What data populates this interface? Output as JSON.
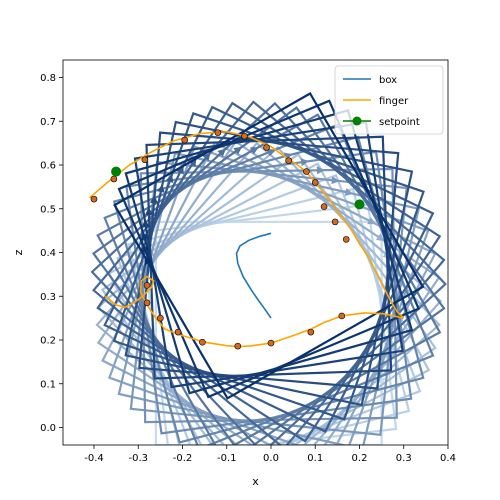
{
  "chart_data": {
    "type": "line",
    "xlabel": "x",
    "ylabel": "z",
    "xlim": [
      -0.47,
      0.4
    ],
    "ylim": [
      -0.04,
      0.84
    ],
    "xticks": [
      "-0.4",
      "-0.3",
      "-0.2",
      "-0.1",
      "0.0",
      "0.1",
      "0.2",
      "0.3",
      "0.4"
    ],
    "xtick_values": [
      -0.4,
      -0.3,
      -0.2,
      -0.1,
      0.0,
      0.1,
      0.2,
      0.3,
      0.4
    ],
    "yticks": [
      "0.0",
      "0.1",
      "0.2",
      "0.3",
      "0.4",
      "0.5",
      "0.6",
      "0.7",
      "0.8"
    ],
    "ytick_values": [
      0.0,
      0.1,
      0.2,
      0.3,
      0.4,
      0.5,
      0.6,
      0.7,
      0.8
    ],
    "grid": false,
    "legend_position": "top-right",
    "colors": {
      "box": "#1f77b4",
      "finger": "#ffa500",
      "setpoint": "#008000",
      "contact_fill": "#d2691e",
      "contact_edge": "#000000"
    },
    "legend": [
      {
        "label": "box",
        "kind": "line",
        "color": "#1f77b4"
      },
      {
        "label": "finger",
        "kind": "line",
        "color": "#ffa500"
      },
      {
        "label": "setpoint",
        "kind": "marker",
        "color": "#008000"
      }
    ],
    "box_frames": {
      "width": 0.2,
      "height": 0.4,
      "initial_center": [
        0.025,
        0.215
      ],
      "angles_deg": [
        0,
        7,
        14,
        21,
        28,
        35,
        42,
        49,
        56,
        63,
        70,
        77,
        84,
        91,
        98,
        105,
        112,
        119,
        126,
        133,
        140,
        147,
        154,
        161,
        168,
        175,
        182,
        189,
        196,
        203,
        210
      ],
      "color_light": "#c6dbef",
      "color_dark": "#08306b"
    },
    "box_center_path": {
      "x": [
        0.0,
        -0.012,
        -0.028,
        -0.045,
        -0.063,
        -0.075,
        -0.078,
        -0.07,
        -0.05,
        -0.025,
        0.0
      ],
      "y": [
        0.25,
        0.268,
        0.29,
        0.315,
        0.345,
        0.375,
        0.398,
        0.415,
        0.428,
        0.437,
        0.444
      ]
    },
    "finger_path": {
      "x": [
        0.3,
        0.26,
        0.215,
        0.18,
        0.15,
        0.12,
        0.08,
        0.04,
        -0.01,
        -0.07,
        -0.14,
        -0.2,
        -0.235,
        -0.255,
        -0.268,
        -0.28,
        -0.29,
        -0.295,
        -0.292,
        -0.28,
        -0.265,
        -0.268,
        -0.29,
        -0.32,
        -0.36,
        -0.405,
        -0.4,
        -0.36,
        -0.3,
        -0.24,
        -0.18,
        -0.12,
        -0.06,
        -0.02,
        0.02,
        0.05,
        0.08,
        0.1,
        0.13,
        0.16,
        0.2,
        0.22,
        0.24,
        0.255,
        0.27,
        0.28,
        0.29,
        0.3
      ],
      "y": [
        0.25,
        0.26,
        0.262,
        0.255,
        0.245,
        0.228,
        0.212,
        0.2,
        0.19,
        0.187,
        0.193,
        0.207,
        0.222,
        0.245,
        0.268,
        0.292,
        0.31,
        0.328,
        0.342,
        0.345,
        0.33,
        0.31,
        0.28,
        0.24,
        0.2,
        0.165,
        0.52,
        0.56,
        0.61,
        0.65,
        0.672,
        0.675,
        0.665,
        0.645,
        0.618,
        0.6,
        0.57,
        0.545,
        0.51,
        0.49,
        0.46,
        0.43,
        0.4,
        0.38,
        0.35,
        0.33,
        0.31,
        0.29
      ]
    },
    "finger_curve": {
      "x": [
        0.3,
        0.24,
        0.19,
        0.15,
        0.1,
        0.05,
        0.0,
        -0.07,
        -0.14,
        -0.2,
        -0.24,
        -0.26,
        -0.28,
        -0.295,
        -0.29,
        -0.275,
        -0.26,
        -0.27,
        -0.3,
        -0.35,
        -0.41,
        -0.35,
        -0.28,
        -0.2,
        -0.12,
        -0.06,
        -0.01,
        0.03,
        0.07,
        0.1,
        0.13,
        0.16,
        0.19,
        0.21,
        0.24,
        0.26,
        0.28,
        0.3
      ],
      "y": [
        0.25,
        0.258,
        0.253,
        0.24,
        0.22,
        0.205,
        0.193,
        0.187,
        0.192,
        0.207,
        0.225,
        0.25,
        0.285,
        0.315,
        0.34,
        0.345,
        0.325,
        0.295,
        0.25,
        0.585,
        0.525,
        0.6,
        0.645,
        0.672,
        0.676,
        0.662,
        0.638,
        0.61,
        0.585,
        0.55,
        0.515,
        0.48,
        0.44,
        0.41,
        0.36,
        0.32,
        0.28,
        0.25
      ]
    },
    "finger_line": {
      "x": [
        0.3,
        0.255,
        0.21,
        0.16,
        0.12,
        0.09,
        0.05,
        0.0,
        -0.05,
        -0.075,
        -0.1,
        -0.15,
        -0.2,
        -0.24,
        -0.26,
        -0.28,
        -0.295,
        -0.293,
        -0.28,
        -0.265,
        -0.27,
        -0.29,
        -0.31,
        -0.33,
        -0.35,
        -0.375,
        -0.41,
        -0.37,
        -0.32,
        -0.27,
        -0.22,
        -0.16,
        -0.1,
        -0.05,
        0.0,
        0.03,
        0.06,
        0.08,
        0.1,
        0.12,
        0.14,
        0.16,
        0.18,
        0.2,
        0.22,
        0.24,
        0.255,
        0.27,
        0.285,
        0.3
      ],
      "y": [
        0.25,
        0.26,
        0.262,
        0.255,
        0.24,
        0.225,
        0.21,
        0.193,
        0.186,
        0.185,
        0.187,
        0.195,
        0.21,
        0.225,
        0.25,
        0.28,
        0.31,
        0.335,
        0.345,
        0.335,
        0.32,
        0.3,
        0.285,
        0.275,
        0.28,
        0.3,
        0.525,
        0.56,
        0.6,
        0.63,
        0.655,
        0.672,
        0.676,
        0.665,
        0.642,
        0.62,
        0.6,
        0.585,
        0.56,
        0.535,
        0.51,
        0.48,
        0.455,
        0.42,
        0.39,
        0.35,
        0.32,
        0.29,
        0.265,
        0.25
      ]
    },
    "contact_points": {
      "x": [
        0.16,
        0.09,
        0.0,
        -0.075,
        -0.155,
        -0.21,
        -0.25,
        -0.28,
        -0.28,
        -0.4,
        -0.355,
        -0.285,
        -0.195,
        -0.12,
        -0.06,
        -0.01,
        0.04,
        0.08,
        0.1,
        0.12,
        0.145,
        0.17
      ],
      "y": [
        0.255,
        0.218,
        0.193,
        0.186,
        0.195,
        0.218,
        0.25,
        0.285,
        0.325,
        0.522,
        0.568,
        0.612,
        0.657,
        0.674,
        0.666,
        0.64,
        0.61,
        0.585,
        0.56,
        0.505,
        0.47,
        0.43
      ]
    },
    "setpoints": {
      "x": [
        -0.35,
        0.2
      ],
      "y": [
        0.585,
        0.51
      ]
    }
  }
}
